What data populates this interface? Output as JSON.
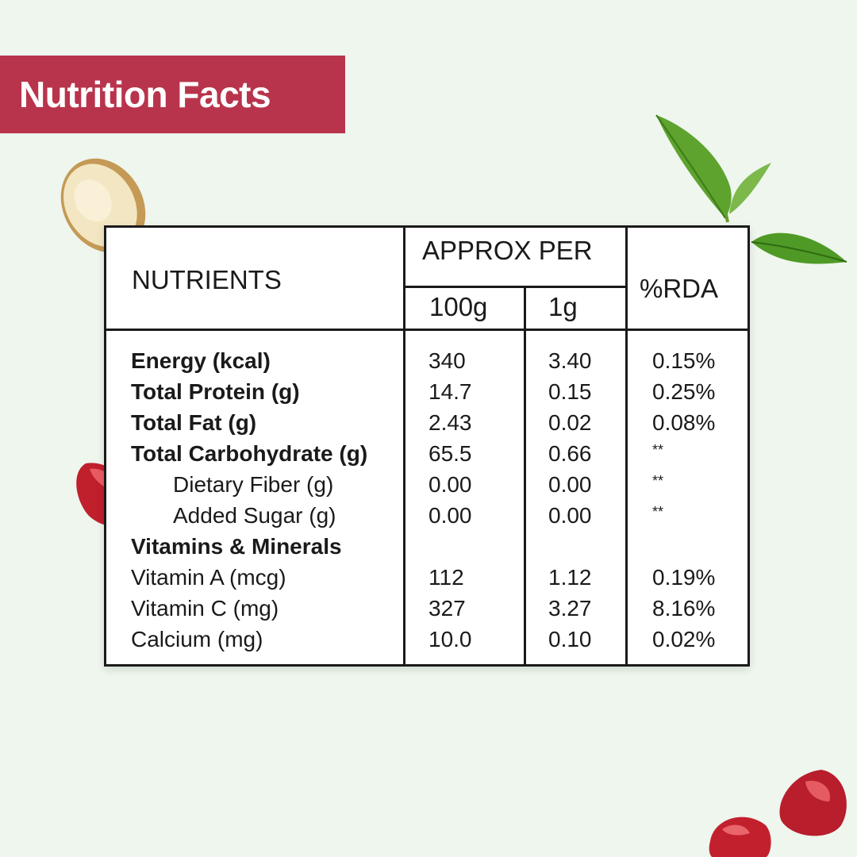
{
  "title": "Nutrition Facts",
  "colors": {
    "banner": "#b8344c",
    "background": "#eef6ee",
    "border": "#1a1a1a"
  },
  "decorations": [
    "ginger-slice",
    "tea-leaves",
    "pomegranate-seed",
    "pomegranate-seed",
    "pomegranate-seed"
  ],
  "table": {
    "headers": {
      "nutrients": "NUTRIENTS",
      "approx_per": "APPROX PER",
      "per_100g": "100g",
      "per_1g": "1g",
      "rda": "%RDA"
    },
    "rows": [
      {
        "name": "Energy (kcal)",
        "per_100g": "340",
        "per_1g": "3.40",
        "rda": "0.15%",
        "style": "bold"
      },
      {
        "name": "Total Protein (g)",
        "per_100g": "14.7",
        "per_1g": "0.15",
        "rda": "0.25%",
        "style": "bold"
      },
      {
        "name": "Total Fat (g)",
        "per_100g": "2.43",
        "per_1g": "0.02",
        "rda": "0.08%",
        "style": "bold"
      },
      {
        "name": "Total Carbohydrate (g)",
        "per_100g": "65.5",
        "per_1g": "0.66",
        "rda": "**",
        "style": "bold"
      },
      {
        "name": "Dietary Fiber (g)",
        "per_100g": "0.00",
        "per_1g": "0.00",
        "rda": "**",
        "style": "indent"
      },
      {
        "name": "Added Sugar (g)",
        "per_100g": "0.00",
        "per_1g": "0.00",
        "rda": "**",
        "style": "indent"
      },
      {
        "name": "Vitamins & Minerals",
        "per_100g": "",
        "per_1g": "",
        "rda": "",
        "style": "bold"
      },
      {
        "name": "Vitamin A (mcg)",
        "per_100g": "112",
        "per_1g": "1.12",
        "rda": "0.19%",
        "style": "normal"
      },
      {
        "name": "Vitamin C (mg)",
        "per_100g": "327",
        "per_1g": "3.27",
        "rda": "8.16%",
        "style": "normal"
      },
      {
        "name": "Calcium (mg)",
        "per_100g": "10.0",
        "per_1g": "0.10",
        "rda": "0.02%",
        "style": "normal"
      }
    ]
  }
}
